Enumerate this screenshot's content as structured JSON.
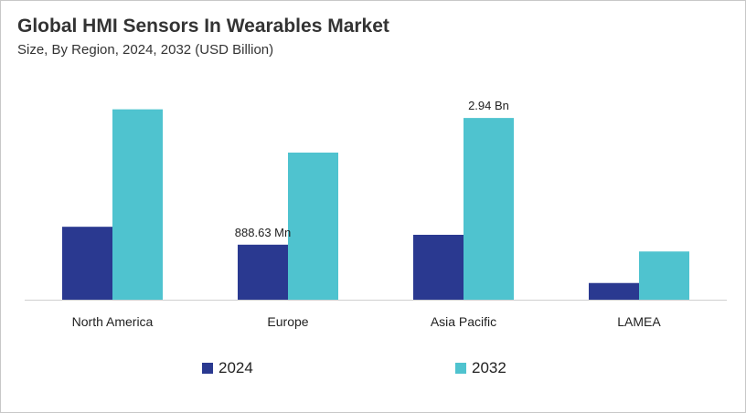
{
  "title": "Global HMI Sensors In Wearables Market",
  "subtitle": "Size, By Region, 2024, 2032 (USD Billion)",
  "chart_data": {
    "type": "bar",
    "title": "Global HMI Sensors In Wearables Market",
    "subtitle": "Size, By Region, 2024, 2032 (USD Billion)",
    "categories": [
      "North America",
      "Europe",
      "Asia Pacific",
      "LAMEA"
    ],
    "series": [
      {
        "name": "2024",
        "color": "#2a3990",
        "values": [
          1.18,
          0.89,
          1.05,
          0.27
        ]
      },
      {
        "name": "2032",
        "color": "#4fc3cf",
        "values": [
          3.08,
          2.38,
          2.94,
          0.78
        ]
      }
    ],
    "data_labels": [
      {
        "series": 0,
        "category": 1,
        "text": "888.63  Mn"
      },
      {
        "series": 1,
        "category": 2,
        "text": "2.94 Bn"
      }
    ],
    "ylim": [
      0,
      3.4
    ],
    "grid": false,
    "legend": "bottom"
  }
}
